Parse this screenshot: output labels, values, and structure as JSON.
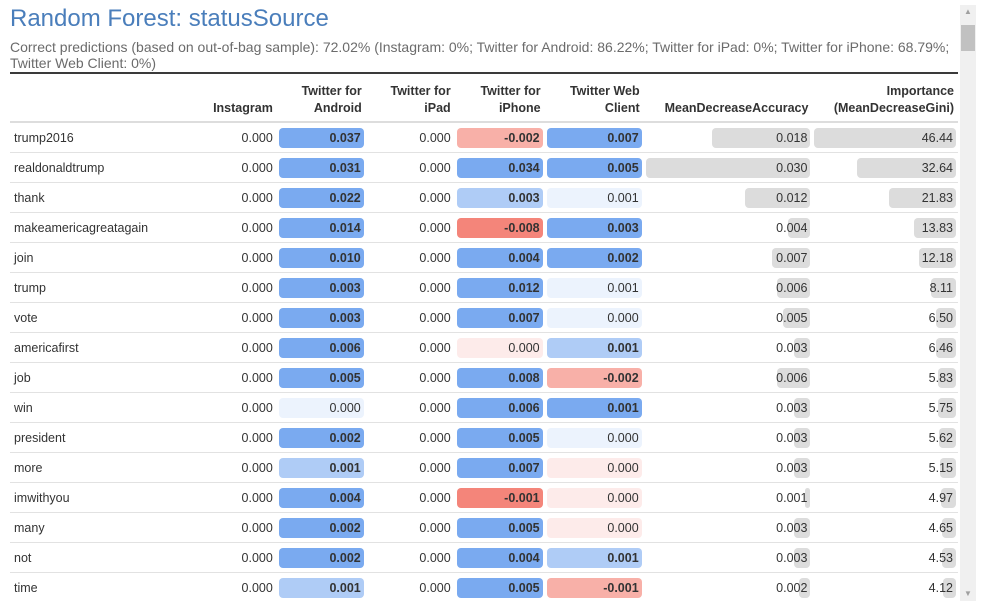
{
  "title": "Random Forest: statusSource",
  "subtitle": "Correct predictions (based on out-of-bag sample): 72.02% (Instagram: 0%; Twitter for Android: 86.22%; Twitter for iPad: 0%; Twitter for iPhone: 68.79%; Twitter Web Client: 0%)",
  "columns": [
    "",
    "Instagram",
    "Twitter for Android",
    "Twitter for iPad",
    "Twitter for iPhone",
    "Twitter Web Client",
    "MeanDecreaseAccuracy",
    "Importance (MeanDecreaseGini)"
  ],
  "colors": {
    "positive": "#7aaaf0",
    "negative": "#f4857a",
    "gray": "#dcdcdc",
    "title": "#4a7ebb"
  },
  "rows": [
    {
      "word": "trump2016",
      "instagram": "0.000",
      "android": "0.037",
      "ipad": "0.000",
      "iphone": "-0.002",
      "web": "0.007",
      "mda": "0.018",
      "mdg": "46.44"
    },
    {
      "word": "realdonaldtrump",
      "instagram": "0.000",
      "android": "0.031",
      "ipad": "0.000",
      "iphone": "0.034",
      "web": "0.005",
      "mda": "0.030",
      "mdg": "32.64"
    },
    {
      "word": "thank",
      "instagram": "0.000",
      "android": "0.022",
      "ipad": "0.000",
      "iphone": "0.003",
      "web": "0.001",
      "mda": "0.012",
      "mdg": "21.83"
    },
    {
      "word": "makeamericagreatagain",
      "instagram": "0.000",
      "android": "0.014",
      "ipad": "0.000",
      "iphone": "-0.008",
      "web": "0.003",
      "mda": "0.004",
      "mdg": "13.83"
    },
    {
      "word": "join",
      "instagram": "0.000",
      "android": "0.010",
      "ipad": "0.000",
      "iphone": "0.004",
      "web": "0.002",
      "mda": "0.007",
      "mdg": "12.18"
    },
    {
      "word": "trump",
      "instagram": "0.000",
      "android": "0.003",
      "ipad": "0.000",
      "iphone": "0.012",
      "web": "0.001",
      "mda": "0.006",
      "mdg": "8.11"
    },
    {
      "word": "vote",
      "instagram": "0.000",
      "android": "0.003",
      "ipad": "0.000",
      "iphone": "0.007",
      "web": "0.000",
      "mda": "0.005",
      "mdg": "6.50"
    },
    {
      "word": "americafirst",
      "instagram": "0.000",
      "android": "0.006",
      "ipad": "0.000",
      "iphone": "0.000",
      "web": "0.001",
      "mda": "0.003",
      "mdg": "6.46"
    },
    {
      "word": "job",
      "instagram": "0.000",
      "android": "0.005",
      "ipad": "0.000",
      "iphone": "0.008",
      "web": "-0.002",
      "mda": "0.006",
      "mdg": "5.83"
    },
    {
      "word": "win",
      "instagram": "0.000",
      "android": "0.000",
      "ipad": "0.000",
      "iphone": "0.006",
      "web": "0.001",
      "mda": "0.003",
      "mdg": "5.75"
    },
    {
      "word": "president",
      "instagram": "0.000",
      "android": "0.002",
      "ipad": "0.000",
      "iphone": "0.005",
      "web": "0.000",
      "mda": "0.003",
      "mdg": "5.62"
    },
    {
      "word": "more",
      "instagram": "0.000",
      "android": "0.001",
      "ipad": "0.000",
      "iphone": "0.007",
      "web": "0.000",
      "mda": "0.003",
      "mdg": "5.15"
    },
    {
      "word": "imwithyou",
      "instagram": "0.000",
      "android": "0.004",
      "ipad": "0.000",
      "iphone": "-0.001",
      "web": "0.000",
      "mda": "0.001",
      "mdg": "4.97"
    },
    {
      "word": "many",
      "instagram": "0.000",
      "android": "0.002",
      "ipad": "0.000",
      "iphone": "0.005",
      "web": "0.000",
      "mda": "0.003",
      "mdg": "4.65"
    },
    {
      "word": "not",
      "instagram": "0.000",
      "android": "0.002",
      "ipad": "0.000",
      "iphone": "0.004",
      "web": "0.001",
      "mda": "0.003",
      "mdg": "4.53"
    },
    {
      "word": "time",
      "instagram": "0.000",
      "android": "0.001",
      "ipad": "0.000",
      "iphone": "0.005",
      "web": "-0.001",
      "mda": "0.002",
      "mdg": "4.12"
    }
  ],
  "cell_shading": {
    "android": [
      "strong",
      "strong",
      "strong",
      "strong",
      "strong",
      "strong",
      "strong",
      "strong",
      "strong",
      "faint",
      "strong",
      "light",
      "strong",
      "strong",
      "strong",
      "light"
    ],
    "iphone": [
      "neg-light",
      "strong",
      "light",
      "neg-strong",
      "strong",
      "strong",
      "strong",
      "neg-faint",
      "strong",
      "strong",
      "strong",
      "strong",
      "neg-strong",
      "strong",
      "strong",
      "strong"
    ],
    "web": [
      "strong",
      "strong",
      "faint",
      "strong",
      "strong",
      "faint",
      "faint",
      "light",
      "neg-light",
      "strong",
      "faint",
      "neg-faint",
      "neg-faint",
      "neg-faint",
      "light",
      "neg-light"
    ]
  }
}
